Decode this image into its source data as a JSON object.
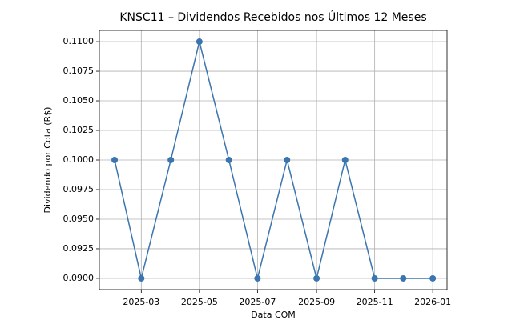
{
  "chart_data": {
    "type": "line",
    "title": "KNSC11 – Dividendos Recebidos nos Últimos 12 Meses",
    "x_label": "Data COM",
    "y_label": "Dividendo por Cota (R$)",
    "x": [
      "2025-02",
      "2025-03",
      "2025-04",
      "2025-05",
      "2025-06",
      "2025-07",
      "2025-08",
      "2025-09",
      "2025-10",
      "2025-11",
      "2025-12",
      "2026-01"
    ],
    "series": [
      {
        "name": "KNSC11",
        "color": "#3a75af",
        "values": [
          0.1,
          0.09,
          0.1,
          0.11,
          0.1,
          0.09,
          0.1,
          0.09,
          0.1,
          0.09,
          0.09,
          0.09
        ]
      }
    ],
    "xlim": [
      "2025-01-16",
      "2026-01-16"
    ],
    "xticks": [
      "2025-03",
      "2025-05",
      "2025-07",
      "2025-09",
      "2025-11",
      "2026-01"
    ],
    "ylim": [
      0.08905,
      0.11095
    ],
    "yticks": [
      {
        "value": 0.09,
        "label": "0.0900"
      },
      {
        "value": 0.0925,
        "label": "0.0925"
      },
      {
        "value": 0.095,
        "label": "0.0950"
      },
      {
        "value": 0.0975,
        "label": "0.0975"
      },
      {
        "value": 0.1,
        "label": "0.1000"
      },
      {
        "value": 0.1025,
        "label": "0.1025"
      },
      {
        "value": 0.105,
        "label": "0.1050"
      },
      {
        "value": 0.1075,
        "label": "0.1075"
      },
      {
        "value": 0.11,
        "label": "0.1100"
      }
    ],
    "grid": true
  }
}
